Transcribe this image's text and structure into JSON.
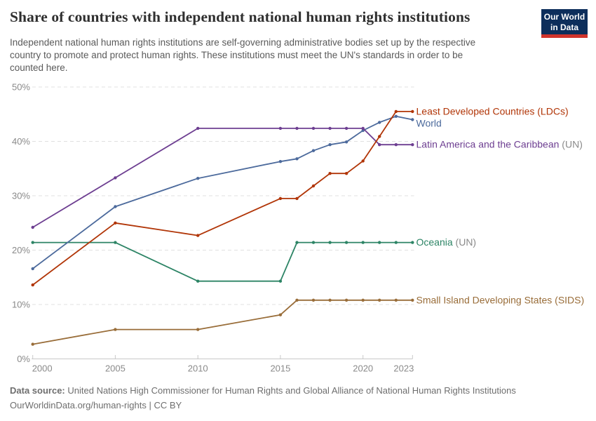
{
  "header": {
    "title": "Share of countries with independent national human rights institutions",
    "subtitle_lines": [
      "Independent national human rights institutions are self-governing administrative bodies set up by the respective",
      "country to promote and protect human rights. These institutions must meet the UN's standards in order to be",
      "counted here."
    ],
    "logo_line1": "Our World",
    "logo_line2": "in Data",
    "logo_colors": {
      "background": "#0d2e5b",
      "stripe": "#d0342c"
    }
  },
  "chart_data": {
    "type": "line",
    "title": "Share of countries with independent national human rights institutions",
    "x": [
      2000,
      2005,
      2010,
      2015,
      2016,
      2017,
      2018,
      2019,
      2020,
      2021,
      2022,
      2023
    ],
    "series": [
      {
        "name": "Oceania",
        "suffix": " (UN)",
        "color": "#2C8465",
        "values": [
          21.4,
          21.4,
          14.3,
          14.3,
          21.4,
          21.4,
          21.4,
          21.4,
          21.4,
          21.4,
          21.4,
          21.4
        ]
      },
      {
        "name": "Small Island Developing States (SIDS)",
        "suffix": "",
        "color": "#996D39",
        "values": [
          2.7,
          5.4,
          5.4,
          8.1,
          10.8,
          10.8,
          10.8,
          10.8,
          10.8,
          10.8,
          10.8,
          10.8
        ]
      },
      {
        "name": "World",
        "suffix": "",
        "color": "#4C6A9C",
        "values": [
          16.6,
          28.0,
          33.2,
          36.3,
          36.8,
          38.3,
          39.4,
          39.9,
          42.0,
          43.5,
          44.6,
          44.0
        ]
      },
      {
        "name": "Latin America and the Caribbean",
        "suffix": " (UN)",
        "color": "#6D3E91",
        "values": [
          24.2,
          33.3,
          42.4,
          42.4,
          42.4,
          42.4,
          42.4,
          42.4,
          42.4,
          39.4,
          39.4,
          39.4
        ]
      },
      {
        "name": "Least Developed Countries (LDCs)",
        "suffix": "",
        "color": "#B13507",
        "values": [
          13.6,
          25.0,
          22.7,
          29.5,
          29.5,
          31.8,
          34.1,
          34.1,
          36.4,
          40.9,
          45.5,
          45.5
        ]
      }
    ],
    "xlim": [
      2000,
      2023
    ],
    "ylim": [
      0,
      50
    ],
    "xticks": [
      2000,
      2005,
      2010,
      2015,
      2020,
      2023
    ],
    "yticks": [
      0,
      10,
      20,
      30,
      40,
      50
    ],
    "ytick_suffix": "%",
    "grid": "horizontal-dashed",
    "legend_position": "right-of-line-ends",
    "muted_text_color": "#8a8a8a"
  },
  "footer": {
    "source_label": "Data source:",
    "source_text": "United Nations High Commissioner for Human Rights and Global Alliance of National Human Rights Institutions",
    "attribution": "OurWorldinData.org/human-rights | CC BY"
  }
}
